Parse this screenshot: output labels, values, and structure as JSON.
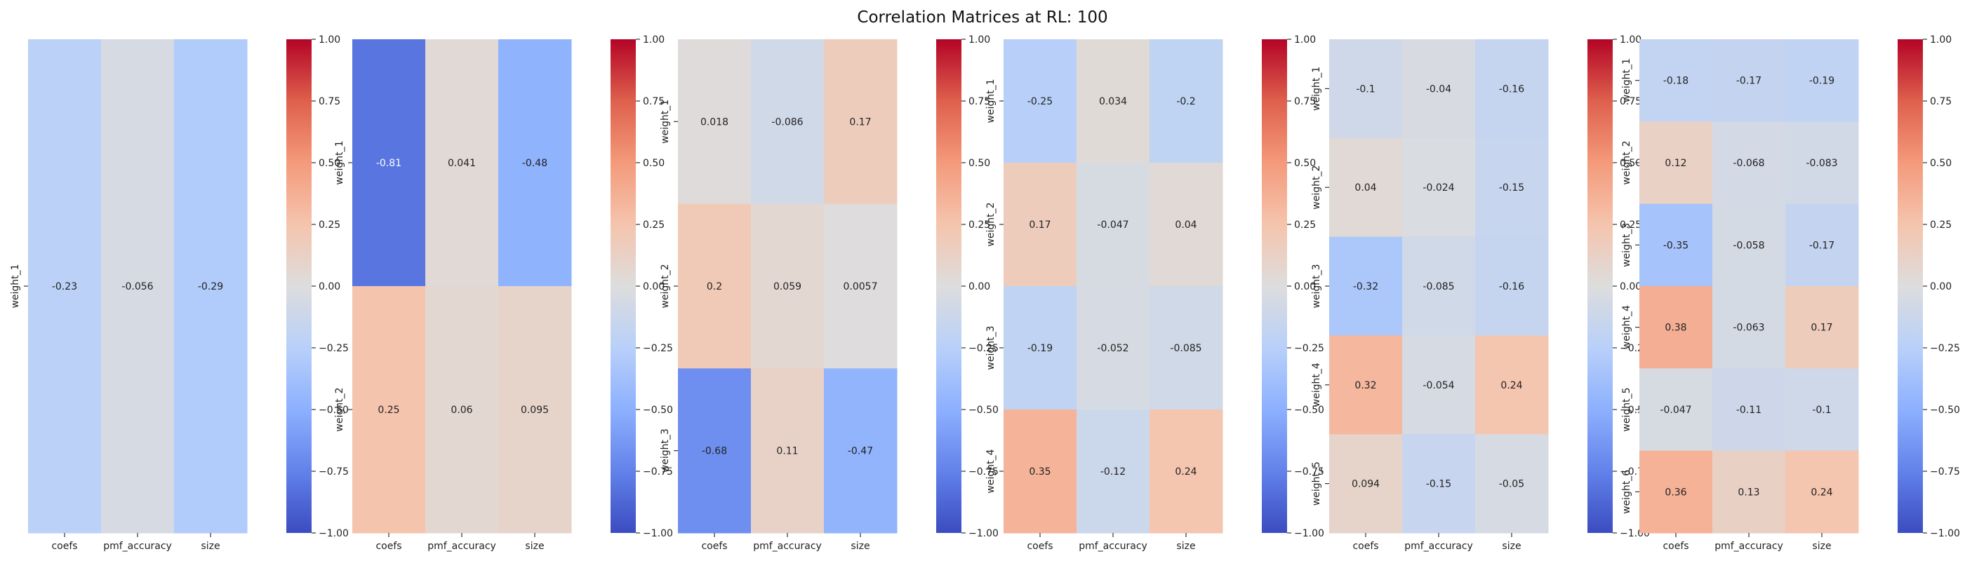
{
  "title": "Correlation Matrices at RL: 100",
  "chart_data": {
    "type": "heatmap",
    "colormap": "coolwarm",
    "vmin": -1,
    "vmax": 1,
    "colorbar_ticks": [
      1.0,
      0.75,
      0.5,
      0.25,
      0.0,
      -0.25,
      -0.5,
      -0.75,
      -1.0
    ],
    "colorbar_tick_labels": [
      "1.00",
      "0.75",
      "0.50",
      "0.25",
      "0.00",
      "−0.25",
      "−0.50",
      "−0.75",
      "−1.00"
    ],
    "columns": [
      "coefs",
      "pmf_accuracy",
      "size"
    ],
    "panels": [
      {
        "rows": [
          "weight_1"
        ],
        "values": [
          [
            -0.23,
            -0.056,
            -0.29
          ]
        ],
        "labels": [
          [
            "-0.23",
            "-0.056",
            "-0.29"
          ]
        ]
      },
      {
        "rows": [
          "weight_1",
          "weight_2"
        ],
        "values": [
          [
            -0.81,
            0.041,
            -0.48
          ],
          [
            0.25,
            0.06,
            0.095
          ]
        ],
        "labels": [
          [
            "-0.81",
            "0.041",
            "-0.48"
          ],
          [
            "0.25",
            "0.06",
            "0.095"
          ]
        ]
      },
      {
        "rows": [
          "weight_1",
          "weight_2",
          "weight_3"
        ],
        "values": [
          [
            0.018,
            -0.086,
            0.17
          ],
          [
            0.2,
            0.059,
            0.0057
          ],
          [
            -0.68,
            0.11,
            -0.47
          ]
        ],
        "labels": [
          [
            "0.018",
            "-0.086",
            "0.17"
          ],
          [
            "0.2",
            "0.059",
            "0.0057"
          ],
          [
            "-0.68",
            "0.11",
            "-0.47"
          ]
        ]
      },
      {
        "rows": [
          "weight_1",
          "weight_2",
          "weight_3",
          "weight_4"
        ],
        "values": [
          [
            -0.25,
            0.034,
            -0.2
          ],
          [
            0.17,
            -0.047,
            0.04
          ],
          [
            -0.19,
            -0.052,
            -0.085
          ],
          [
            0.35,
            -0.12,
            0.24
          ]
        ],
        "labels": [
          [
            "-0.25",
            "0.034",
            "-0.2"
          ],
          [
            "0.17",
            "-0.047",
            "0.04"
          ],
          [
            "-0.19",
            "-0.052",
            "-0.085"
          ],
          [
            "0.35",
            "-0.12",
            "0.24"
          ]
        ]
      },
      {
        "rows": [
          "weight_1",
          "weight_2",
          "weight_3",
          "weight_4",
          "weight_5"
        ],
        "values": [
          [
            -0.1,
            -0.04,
            -0.16
          ],
          [
            0.04,
            -0.024,
            -0.15
          ],
          [
            -0.32,
            -0.085,
            -0.16
          ],
          [
            0.32,
            -0.054,
            0.24
          ],
          [
            0.094,
            -0.15,
            -0.05
          ]
        ],
        "labels": [
          [
            "-0.1",
            "-0.04",
            "-0.16"
          ],
          [
            "0.04",
            "-0.024",
            "-0.15"
          ],
          [
            "-0.32",
            "-0.085",
            "-0.16"
          ],
          [
            "0.32",
            "-0.054",
            "0.24"
          ],
          [
            "0.094",
            "-0.15",
            "-0.05"
          ]
        ]
      },
      {
        "rows": [
          "weight_1",
          "weight_2",
          "weight_3",
          "weight_4",
          "weight_5",
          "weight_6"
        ],
        "values": [
          [
            -0.18,
            -0.17,
            -0.19
          ],
          [
            0.12,
            -0.068,
            -0.083
          ],
          [
            -0.35,
            -0.058,
            -0.17
          ],
          [
            0.38,
            -0.063,
            0.17
          ],
          [
            -0.047,
            -0.11,
            -0.1
          ],
          [
            0.36,
            0.13,
            0.24
          ]
        ],
        "labels": [
          [
            "-0.18",
            "-0.17",
            "-0.19"
          ],
          [
            "0.12",
            "-0.068",
            "-0.083"
          ],
          [
            "-0.35",
            "-0.058",
            "-0.17"
          ],
          [
            "0.38",
            "-0.063",
            "0.17"
          ],
          [
            "-0.047",
            "-0.11",
            "-0.1"
          ],
          [
            "0.36",
            "0.13",
            "0.24"
          ]
        ]
      }
    ]
  }
}
